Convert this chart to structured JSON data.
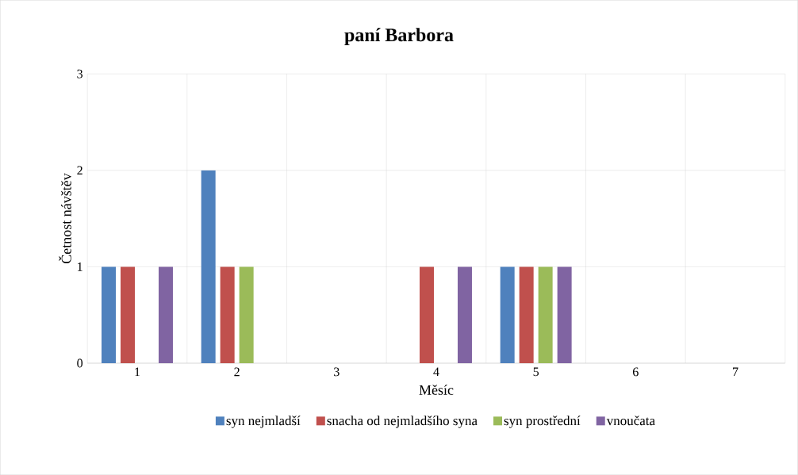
{
  "chart_data": {
    "type": "bar",
    "title": "paní Barbora",
    "xlabel": "Měsíc",
    "ylabel": "Četnost návštěv",
    "categories": [
      "1",
      "2",
      "3",
      "4",
      "5",
      "6",
      "7"
    ],
    "series": [
      {
        "name": "syn nejmladší",
        "color": "#4f81bd",
        "values": [
          1,
          2,
          0,
          0,
          1,
          0,
          0
        ]
      },
      {
        "name": "snacha od nejmladšího syna",
        "color": "#c0504d",
        "values": [
          1,
          1,
          0,
          1,
          1,
          0,
          0
        ]
      },
      {
        "name": "syn prostřední",
        "color": "#9bbb59",
        "values": [
          0,
          1,
          0,
          0,
          1,
          0,
          0
        ]
      },
      {
        "name": "vnoučata",
        "color": "#8064a2",
        "values": [
          1,
          0,
          0,
          1,
          1,
          0,
          0
        ]
      }
    ],
    "ylim": [
      0,
      3
    ],
    "yticks": [
      0,
      1,
      2,
      3
    ],
    "grid": true,
    "legend": "bottom"
  }
}
